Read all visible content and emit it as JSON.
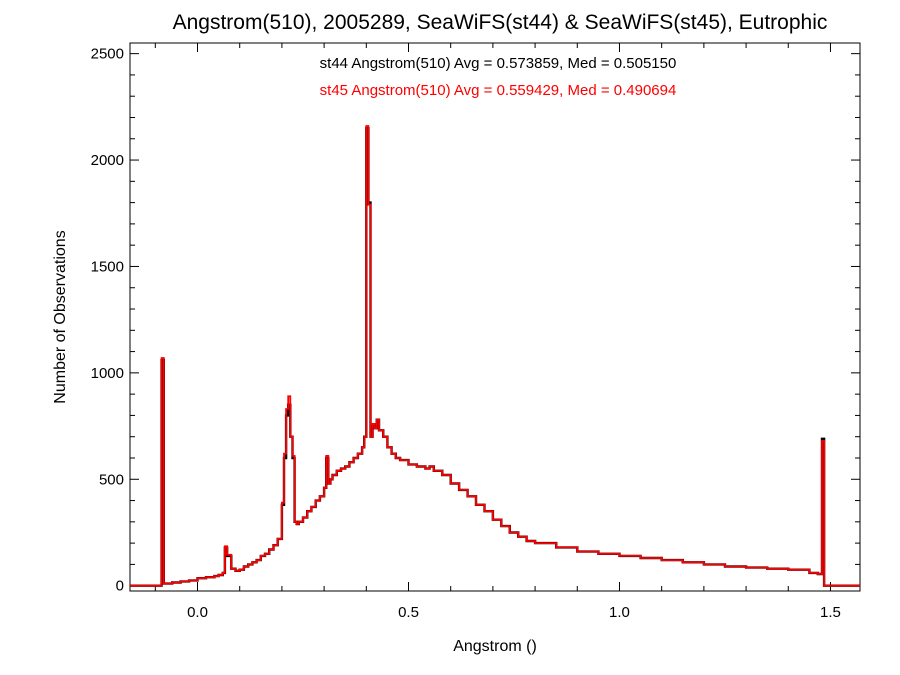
{
  "chart_data": {
    "type": "line",
    "title": "Angstrom(510), 2005289, SeaWiFS(st44) & SeaWiFS(st45), Eutrophic",
    "xlabel": "Angstrom ()",
    "ylabel": "Number of Observations",
    "xlim": [
      -0.16,
      1.57
    ],
    "ylim": [
      -25,
      2550
    ],
    "x_ticks": [
      0.0,
      0.5,
      1.0,
      1.5
    ],
    "x_tick_labels": [
      "0.0",
      "0.5",
      "1.0",
      "1.5"
    ],
    "y_ticks": [
      0,
      500,
      1000,
      1500,
      2000,
      2500
    ],
    "y_tick_labels": [
      "0",
      "500",
      "1000",
      "1500",
      "2000",
      "2500"
    ],
    "grid": false,
    "legend_position": "top-center",
    "series": [
      {
        "name": "st44 Angstrom(510) Avg = 0.573859, Med = 0.505150",
        "color": "#000000",
        "x": [
          -0.16,
          -0.09,
          -0.085,
          -0.08,
          -0.06,
          -0.04,
          -0.02,
          0.0,
          0.02,
          0.04,
          0.05,
          0.06,
          0.065,
          0.07,
          0.08,
          0.09,
          0.1,
          0.11,
          0.12,
          0.13,
          0.14,
          0.15,
          0.16,
          0.17,
          0.18,
          0.19,
          0.2,
          0.205,
          0.21,
          0.215,
          0.22,
          0.225,
          0.23,
          0.235,
          0.24,
          0.25,
          0.26,
          0.27,
          0.28,
          0.29,
          0.3,
          0.305,
          0.31,
          0.315,
          0.32,
          0.33,
          0.34,
          0.35,
          0.36,
          0.37,
          0.38,
          0.39,
          0.395,
          0.4,
          0.405,
          0.41,
          0.415,
          0.42,
          0.425,
          0.43,
          0.44,
          0.45,
          0.46,
          0.47,
          0.48,
          0.5,
          0.52,
          0.54,
          0.55,
          0.56,
          0.58,
          0.6,
          0.62,
          0.64,
          0.66,
          0.68,
          0.7,
          0.72,
          0.74,
          0.76,
          0.78,
          0.8,
          0.85,
          0.9,
          0.95,
          1.0,
          1.05,
          1.1,
          1.15,
          1.2,
          1.25,
          1.3,
          1.35,
          1.4,
          1.45,
          1.47,
          1.48,
          1.485,
          1.49,
          1.57
        ],
        "y": [
          0,
          0,
          1060,
          10,
          15,
          20,
          25,
          35,
          40,
          45,
          50,
          60,
          180,
          140,
          80,
          70,
          75,
          90,
          100,
          110,
          120,
          140,
          150,
          170,
          190,
          220,
          380,
          600,
          800,
          850,
          700,
          600,
          300,
          290,
          300,
          320,
          350,
          370,
          400,
          420,
          460,
          600,
          480,
          500,
          520,
          540,
          550,
          560,
          580,
          600,
          620,
          650,
          700,
          2150,
          1800,
          700,
          750,
          740,
          780,
          730,
          700,
          650,
          620,
          600,
          590,
          570,
          560,
          550,
          560,
          540,
          520,
          480,
          450,
          420,
          380,
          350,
          310,
          280,
          250,
          230,
          210,
          200,
          180,
          160,
          150,
          140,
          130,
          120,
          110,
          100,
          90,
          85,
          80,
          75,
          60,
          55,
          690,
          0,
          0,
          0
        ]
      },
      {
        "name": "st45 Angstrom(510) Avg = 0.559429, Med = 0.490694",
        "color": "#ff0000",
        "x": [
          -0.16,
          -0.09,
          -0.085,
          -0.08,
          -0.06,
          -0.04,
          -0.02,
          0.0,
          0.02,
          0.04,
          0.05,
          0.06,
          0.065,
          0.07,
          0.08,
          0.09,
          0.1,
          0.11,
          0.12,
          0.13,
          0.14,
          0.15,
          0.16,
          0.17,
          0.18,
          0.19,
          0.2,
          0.205,
          0.21,
          0.215,
          0.22,
          0.225,
          0.23,
          0.235,
          0.24,
          0.25,
          0.26,
          0.27,
          0.28,
          0.29,
          0.3,
          0.305,
          0.31,
          0.315,
          0.32,
          0.33,
          0.34,
          0.35,
          0.36,
          0.37,
          0.38,
          0.39,
          0.395,
          0.4,
          0.405,
          0.41,
          0.415,
          0.42,
          0.425,
          0.43,
          0.44,
          0.45,
          0.46,
          0.47,
          0.48,
          0.5,
          0.52,
          0.54,
          0.55,
          0.56,
          0.58,
          0.6,
          0.62,
          0.64,
          0.66,
          0.68,
          0.7,
          0.72,
          0.74,
          0.76,
          0.78,
          0.8,
          0.85,
          0.9,
          0.95,
          1.0,
          1.05,
          1.1,
          1.15,
          1.2,
          1.25,
          1.3,
          1.35,
          1.4,
          1.45,
          1.47,
          1.48,
          1.485,
          1.49,
          1.57
        ],
        "y": [
          0,
          0,
          1070,
          10,
          15,
          20,
          25,
          35,
          40,
          45,
          50,
          60,
          185,
          145,
          80,
          70,
          75,
          90,
          100,
          110,
          120,
          140,
          150,
          170,
          190,
          220,
          390,
          620,
          830,
          890,
          700,
          610,
          300,
          290,
          300,
          320,
          350,
          370,
          400,
          420,
          460,
          610,
          480,
          500,
          520,
          540,
          550,
          560,
          580,
          600,
          620,
          650,
          700,
          2160,
          1790,
          700,
          760,
          740,
          780,
          730,
          700,
          650,
          620,
          600,
          590,
          570,
          560,
          550,
          560,
          540,
          520,
          480,
          450,
          420,
          380,
          350,
          310,
          280,
          250,
          230,
          210,
          200,
          180,
          160,
          150,
          140,
          130,
          120,
          110,
          100,
          90,
          85,
          80,
          75,
          60,
          55,
          680,
          0,
          0,
          0
        ]
      }
    ]
  }
}
